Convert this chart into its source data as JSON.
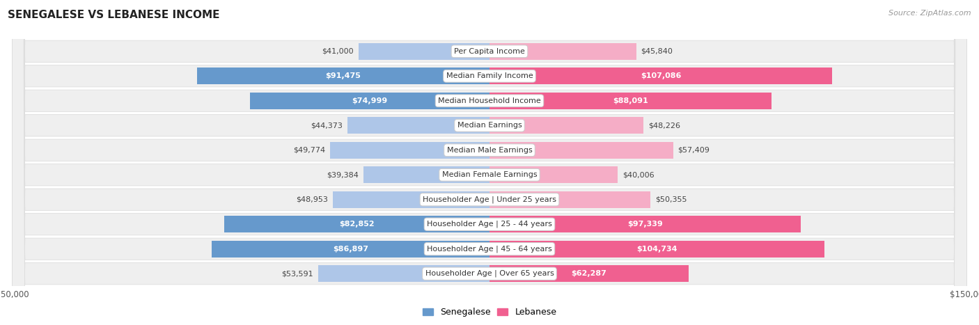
{
  "title": "SENEGALESE VS LEBANESE INCOME",
  "source": "Source: ZipAtlas.com",
  "categories": [
    "Per Capita Income",
    "Median Family Income",
    "Median Household Income",
    "Median Earnings",
    "Median Male Earnings",
    "Median Female Earnings",
    "Householder Age | Under 25 years",
    "Householder Age | 25 - 44 years",
    "Householder Age | 45 - 64 years",
    "Householder Age | Over 65 years"
  ],
  "senegalese": [
    41000,
    91475,
    74999,
    44373,
    49774,
    39384,
    48953,
    82852,
    86897,
    53591
  ],
  "lebanese": [
    45840,
    107086,
    88091,
    48226,
    57409,
    40006,
    50355,
    97339,
    104734,
    62287
  ],
  "senegalese_labels": [
    "$41,000",
    "$91,475",
    "$74,999",
    "$44,373",
    "$49,774",
    "$39,384",
    "$48,953",
    "$82,852",
    "$86,897",
    "$53,591"
  ],
  "lebanese_labels": [
    "$45,840",
    "$107,086",
    "$88,091",
    "$48,226",
    "$57,409",
    "$40,006",
    "$50,355",
    "$97,339",
    "$104,734",
    "$62,287"
  ],
  "senegalese_color_light": "#aec6e8",
  "senegalese_color_dark": "#6699cc",
  "lebanese_color_light": "#f5adc6",
  "lebanese_color_dark": "#f06090",
  "max_val": 150000,
  "figure_bg": "#ffffff",
  "row_bg": "#efefef",
  "row_edge": "#dddddd",
  "text_dark": "#444444",
  "text_light": "#ffffff",
  "source_color": "#999999",
  "legend_sen_color": "#6699cc",
  "legend_leb_color": "#f06090",
  "sen_dark_threshold": 60000,
  "leb_dark_threshold": 60000
}
